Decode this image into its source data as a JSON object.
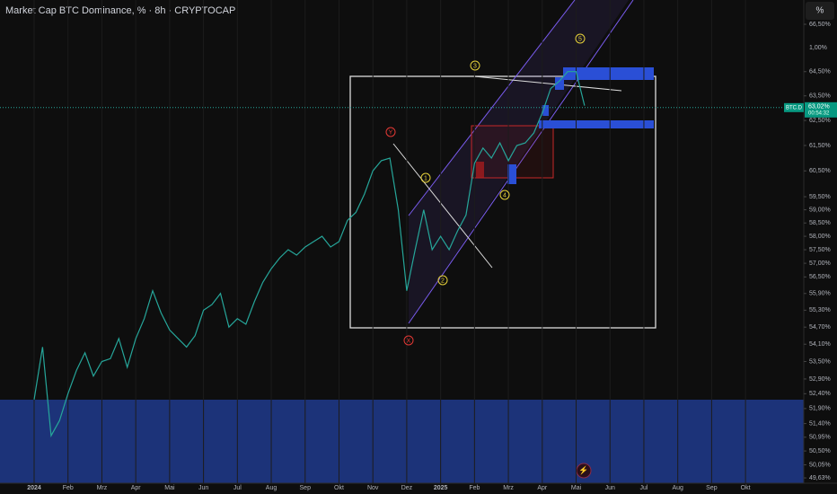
{
  "chart_data": {
    "type": "line",
    "title": "Market Cap BTC Dominance, % · 8h · CRYPTOCAP",
    "log": true,
    "grid": true,
    "categories": [
      "2024",
      null,
      null,
      null,
      "Feb",
      null,
      null,
      null,
      "Mrz",
      null,
      null,
      null,
      "Apr",
      null,
      null,
      null,
      "Mai",
      null,
      null,
      null,
      "Jun",
      null,
      null,
      null,
      "Jul",
      null,
      null,
      null,
      "Aug",
      null,
      null,
      null,
      "Sep",
      null,
      null,
      null,
      "Okt",
      null,
      null,
      null,
      "Nov",
      null,
      null,
      null,
      "Dez",
      null,
      null,
      null,
      "2025",
      null,
      null,
      null,
      "Feb",
      null,
      null,
      null,
      "Mrz",
      null,
      null,
      null,
      "Apr",
      null,
      null,
      null,
      "Mai",
      null,
      null,
      null,
      "Jun",
      null,
      null,
      null,
      "Jul",
      null,
      null,
      null,
      "Aug",
      null,
      null,
      null,
      "Sep",
      null,
      null,
      null,
      "Okt",
      null,
      null,
      null,
      null,
      null,
      null
    ],
    "series": [
      {
        "name": "BTC.D",
        "color": "#26a69a",
        "values": [
          52.2,
          54.0,
          51.0,
          51.5,
          52.4,
          53.2,
          53.8,
          53.0,
          53.5,
          53.6,
          54.3,
          53.3,
          54.3,
          55.0,
          56.0,
          55.2,
          54.6,
          54.3,
          54.0,
          54.4,
          55.3,
          55.5,
          55.9,
          54.7,
          55.0,
          54.8,
          55.6,
          56.3,
          56.8,
          57.2,
          57.5,
          57.3,
          57.6,
          57.8,
          58.0,
          57.6,
          57.8,
          58.6,
          58.9,
          59.6,
          60.5,
          60.9,
          61.0,
          59.0,
          56.0,
          57.5,
          59.0,
          57.5,
          58.0,
          57.5,
          58.2,
          58.8,
          60.8,
          61.4,
          61.0,
          61.6,
          60.9,
          61.5,
          61.6,
          62.0,
          62.8,
          63.8,
          64.1,
          64.5,
          64.5,
          63.1,
          null,
          null,
          null,
          null,
          null,
          null,
          null,
          null,
          null,
          null,
          null,
          null,
          null,
          null,
          null,
          null,
          null,
          null,
          null,
          null,
          null,
          null,
          null,
          null,
          null
        ]
      }
    ],
    "ylim": [
      49.46,
      67.55
    ],
    "yticks": [
      {
        "value": 66.5,
        "label": "66,50%"
      },
      {
        "value": 64.5,
        "label": "64,50%"
      },
      {
        "value": 63.5,
        "label": "63,50%"
      },
      {
        "value": 62.5,
        "label": "62,50%"
      },
      {
        "value": 61.5,
        "label": "61,50%"
      },
      {
        "value": 60.5,
        "label": "60,50%"
      },
      {
        "value": 59.5,
        "label": "59,50%"
      },
      {
        "value": 59,
        "label": "59,00%"
      },
      {
        "value": 58.5,
        "label": "58,50%"
      },
      {
        "value": 58,
        "label": "58,00%"
      },
      {
        "value": 57.5,
        "label": "57,50%"
      },
      {
        "value": 57,
        "label": "57,00%"
      },
      {
        "value": 56.5,
        "label": "56,50%"
      },
      {
        "value": 55.9,
        "label": "55,90%"
      },
      {
        "value": 55.3,
        "label": "55,30%"
      },
      {
        "value": 54.7,
        "label": "54,70%"
      },
      {
        "value": 54.1,
        "label": "54,10%"
      },
      {
        "value": 53.5,
        "label": "53,50%"
      },
      {
        "value": 52.9,
        "label": "52,90%"
      },
      {
        "value": 52.4,
        "label": "52,40%"
      },
      {
        "value": 51.9,
        "label": "51,90%"
      },
      {
        "value": 51.4,
        "label": "51,40%"
      },
      {
        "value": 50.95,
        "label": "50,95%"
      },
      {
        "value": 50.5,
        "label": "50,50%"
      },
      {
        "value": 50.05,
        "label": "50,05%"
      },
      {
        "value": 49.63,
        "label": "49,63%"
      }
    ],
    "last_price": {
      "value": 63.02,
      "label": "63,02%"
    },
    "countdown": "00:54:32",
    "symbol": "BTC.D",
    "change_label": "1,00%",
    "scale_button": "%",
    "annotations": [
      "Y",
      "X",
      "1",
      "2",
      "3",
      "4",
      "5"
    ]
  }
}
